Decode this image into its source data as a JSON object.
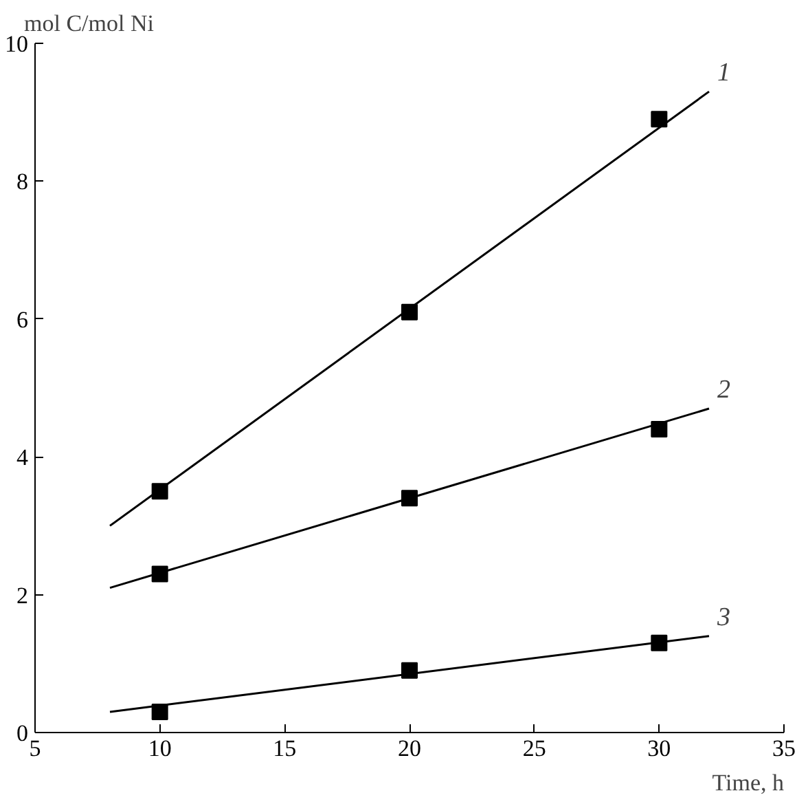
{
  "chart_data": {
    "type": "scatter",
    "xlabel": "Time, h",
    "ylabel": "mol C/mol Ni",
    "xlim": [
      5,
      35
    ],
    "xticks": [
      5,
      10,
      15,
      20,
      25,
      30,
      35
    ],
    "ylim": [
      0,
      10
    ],
    "yticks": [
      0,
      2,
      4,
      6,
      8,
      10
    ],
    "series": [
      {
        "color": "#000000",
        "marker": "square",
        "x": [
          10,
          20,
          30
        ],
        "values": [
          3.5,
          6.1,
          8.9
        ]
      },
      {
        "color": "#000000",
        "marker": "square",
        "x": [
          10,
          20,
          30
        ],
        "values": [
          2.3,
          3.4,
          4.4
        ]
      },
      {
        "color": "#000000",
        "marker": "square",
        "x": [
          10,
          20,
          30
        ],
        "values": [
          0.3,
          0.9,
          1.3
        ]
      },
      {
        "type": "line",
        "name": "1",
        "color": "#000000",
        "x": [
          8,
          32
        ],
        "values": [
          3.0,
          9.3
        ]
      },
      {
        "type": "line",
        "name": "2",
        "color": "#000000",
        "x": [
          8,
          32
        ],
        "values": [
          2.1,
          4.7
        ]
      },
      {
        "type": "line",
        "name": "3",
        "color": "#000000",
        "x": [
          8,
          32
        ],
        "values": [
          0.3,
          1.4
        ]
      }
    ]
  }
}
